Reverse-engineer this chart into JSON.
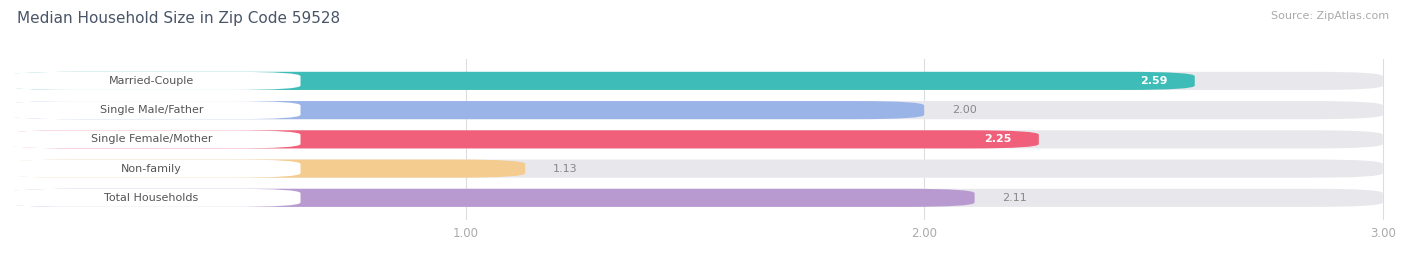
{
  "title": "Median Household Size in Zip Code 59528",
  "source": "Source: ZipAtlas.com",
  "categories": [
    "Married-Couple",
    "Single Male/Father",
    "Single Female/Mother",
    "Non-family",
    "Total Households"
  ],
  "values": [
    2.59,
    2.0,
    2.25,
    1.13,
    2.11
  ],
  "bar_colors": [
    "#3dbcb8",
    "#9ab4e8",
    "#f0607a",
    "#f5cc90",
    "#b89ad0"
  ],
  "bar_bg_color": "#e8e8ec",
  "value_inside_color": "#ffffff",
  "value_outside_color": "#888888",
  "title_color": "#4a5568",
  "source_color": "#aaaaaa",
  "xlim_min": 0.0,
  "xlim_max": 3.0,
  "xticks": [
    1.0,
    2.0,
    3.0
  ],
  "bar_height": 0.62,
  "label_bg_color": "#ffffff",
  "label_text_color": "#555555",
  "figsize": [
    14.06,
    2.68
  ],
  "dpi": 100,
  "background_color": "#ffffff",
  "value_inside_threshold": 2.2
}
